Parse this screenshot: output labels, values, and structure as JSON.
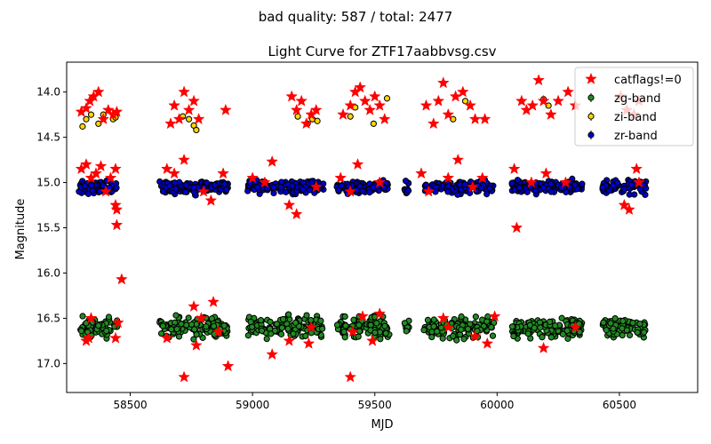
{
  "suptitle": "bad quality: 587 / total: 2477",
  "chart_data": {
    "type": "scatter",
    "title": "Light Curve for ZTF17aabbvsg.csv",
    "xlabel": "MJD",
    "ylabel": "Magnitude",
    "xlim": [
      58240,
      60820
    ],
    "ylim": [
      17.32,
      13.67
    ],
    "y_inverted": true,
    "grid": false,
    "legend_position": "top-right",
    "x_ticks": [
      58500,
      59000,
      59500,
      60000,
      60500
    ],
    "y_ticks": [
      14.0,
      14.5,
      15.0,
      15.5,
      16.0,
      16.5,
      17.0
    ],
    "x_tick_labels": [
      "58500",
      "59000",
      "59500",
      "60000",
      "60500"
    ],
    "y_tick_labels": [
      "14.0",
      "14.5",
      "15.0",
      "15.5",
      "16.0",
      "16.5",
      "17.0"
    ],
    "seasons": [
      [
        58290,
        58450
      ],
      [
        58620,
        58900
      ],
      [
        58980,
        59290
      ],
      [
        59340,
        59560
      ],
      [
        59620,
        59640
      ],
      [
        59700,
        59990
      ],
      [
        60060,
        60350
      ],
      [
        60430,
        60610
      ]
    ],
    "series": [
      {
        "name": "catflags!=0",
        "marker": "star",
        "color": "#ff0000",
        "points": [
          [
            58300,
            14.22
          ],
          [
            58320,
            14.18
          ],
          [
            58335,
            14.1
          ],
          [
            58350,
            14.05
          ],
          [
            58370,
            14.0
          ],
          [
            58390,
            14.3
          ],
          [
            58410,
            14.2
          ],
          [
            58430,
            14.25
          ],
          [
            58445,
            14.22
          ],
          [
            58665,
            14.35
          ],
          [
            58680,
            14.15
          ],
          [
            58700,
            14.3
          ],
          [
            58720,
            14.0
          ],
          [
            58740,
            14.2
          ],
          [
            58760,
            14.1
          ],
          [
            58780,
            14.3
          ],
          [
            58890,
            14.2
          ],
          [
            59160,
            14.05
          ],
          [
            59180,
            14.2
          ],
          [
            59200,
            14.1
          ],
          [
            59220,
            14.35
          ],
          [
            59240,
            14.25
          ],
          [
            59260,
            14.2
          ],
          [
            59370,
            14.25
          ],
          [
            59400,
            14.15
          ],
          [
            59420,
            14.0
          ],
          [
            59440,
            13.95
          ],
          [
            59460,
            14.1
          ],
          [
            59480,
            14.2
          ],
          [
            59500,
            14.05
          ],
          [
            59520,
            14.15
          ],
          [
            59540,
            14.3
          ],
          [
            59710,
            14.15
          ],
          [
            59740,
            14.35
          ],
          [
            59760,
            14.1
          ],
          [
            59780,
            13.9
          ],
          [
            59800,
            14.25
          ],
          [
            59830,
            14.05
          ],
          [
            59860,
            14.0
          ],
          [
            59890,
            14.15
          ],
          [
            59910,
            14.3
          ],
          [
            59950,
            14.3
          ],
          [
            60100,
            14.1
          ],
          [
            60120,
            14.2
          ],
          [
            60145,
            14.15
          ],
          [
            60170,
            13.87
          ],
          [
            60190,
            14.1
          ],
          [
            60220,
            14.25
          ],
          [
            60250,
            14.1
          ],
          [
            60290,
            14.0
          ],
          [
            60320,
            14.15
          ],
          [
            60505,
            14.05
          ],
          [
            60530,
            14.2
          ],
          [
            60560,
            14.25
          ],
          [
            60580,
            14.1
          ],
          [
            58300,
            14.85
          ],
          [
            58320,
            14.8
          ],
          [
            58340,
            14.95
          ],
          [
            58360,
            14.9
          ],
          [
            58380,
            14.82
          ],
          [
            58400,
            15.1
          ],
          [
            58420,
            14.95
          ],
          [
            58440,
            14.85
          ],
          [
            58440,
            15.25
          ],
          [
            58445,
            15.3
          ],
          [
            58445,
            15.47
          ],
          [
            58465,
            16.07
          ],
          [
            58650,
            14.85
          ],
          [
            58680,
            14.9
          ],
          [
            58720,
            14.75
          ],
          [
            58800,
            15.1
          ],
          [
            58830,
            15.2
          ],
          [
            58880,
            14.9
          ],
          [
            59000,
            14.95
          ],
          [
            59050,
            15.0
          ],
          [
            59080,
            14.77
          ],
          [
            59150,
            15.25
          ],
          [
            59180,
            15.35
          ],
          [
            59260,
            15.05
          ],
          [
            59360,
            14.95
          ],
          [
            59400,
            15.1
          ],
          [
            59430,
            14.8
          ],
          [
            59520,
            15.0
          ],
          [
            59690,
            14.9
          ],
          [
            59720,
            15.1
          ],
          [
            59800,
            14.95
          ],
          [
            59840,
            14.75
          ],
          [
            59900,
            15.05
          ],
          [
            59940,
            14.95
          ],
          [
            60070,
            14.85
          ],
          [
            60080,
            15.5
          ],
          [
            60140,
            15.0
          ],
          [
            60200,
            14.9
          ],
          [
            60280,
            15.0
          ],
          [
            60520,
            15.25
          ],
          [
            60540,
            15.3
          ],
          [
            60570,
            14.85
          ],
          [
            60580,
            15.0
          ],
          [
            58320,
            16.75
          ],
          [
            58330,
            16.72
          ],
          [
            58340,
            16.5
          ],
          [
            58440,
            16.72
          ],
          [
            58450,
            16.55
          ],
          [
            58650,
            16.72
          ],
          [
            58720,
            17.15
          ],
          [
            58760,
            16.37
          ],
          [
            58770,
            16.8
          ],
          [
            58790,
            16.5
          ],
          [
            58840,
            16.32
          ],
          [
            58860,
            16.65
          ],
          [
            58900,
            17.03
          ],
          [
            59080,
            16.9
          ],
          [
            59150,
            16.75
          ],
          [
            59230,
            16.78
          ],
          [
            59240,
            16.6
          ],
          [
            59400,
            17.15
          ],
          [
            59410,
            16.65
          ],
          [
            59450,
            16.48
          ],
          [
            59490,
            16.75
          ],
          [
            59520,
            16.45
          ],
          [
            59780,
            16.5
          ],
          [
            59800,
            16.6
          ],
          [
            59910,
            16.7
          ],
          [
            59960,
            16.78
          ],
          [
            59990,
            16.48
          ],
          [
            60190,
            16.83
          ],
          [
            60320,
            16.6
          ]
        ]
      },
      {
        "name": "zg-band",
        "marker": "circle-errorbar",
        "color": "#228b22",
        "edge": "#000000",
        "mag": 16.6,
        "spread": 0.11
      },
      {
        "name": "zi-band",
        "marker": "circle-errorbar",
        "color": "#ffd700",
        "edge": "#000000",
        "points": [
          [
            58305,
            14.38
          ],
          [
            58320,
            14.3
          ],
          [
            58340,
            14.25
          ],
          [
            58370,
            14.35
          ],
          [
            58390,
            14.25
          ],
          [
            58430,
            14.3
          ],
          [
            58440,
            14.28
          ],
          [
            58715,
            14.27
          ],
          [
            58740,
            14.3
          ],
          [
            58760,
            14.37
          ],
          [
            58770,
            14.42
          ],
          [
            59185,
            14.27
          ],
          [
            59225,
            14.35
          ],
          [
            59245,
            14.3
          ],
          [
            59265,
            14.32
          ],
          [
            59400,
            14.27
          ],
          [
            59420,
            14.17
          ],
          [
            59495,
            14.35
          ],
          [
            59550,
            14.07
          ],
          [
            59820,
            14.3
          ],
          [
            59870,
            14.1
          ],
          [
            60190,
            14.08
          ],
          [
            60210,
            14.15
          ]
        ]
      },
      {
        "name": "zr-band",
        "marker": "circle-errorbar",
        "color": "#0000cd",
        "edge": "#000000",
        "mag": 15.05,
        "spread": 0.07
      }
    ]
  }
}
